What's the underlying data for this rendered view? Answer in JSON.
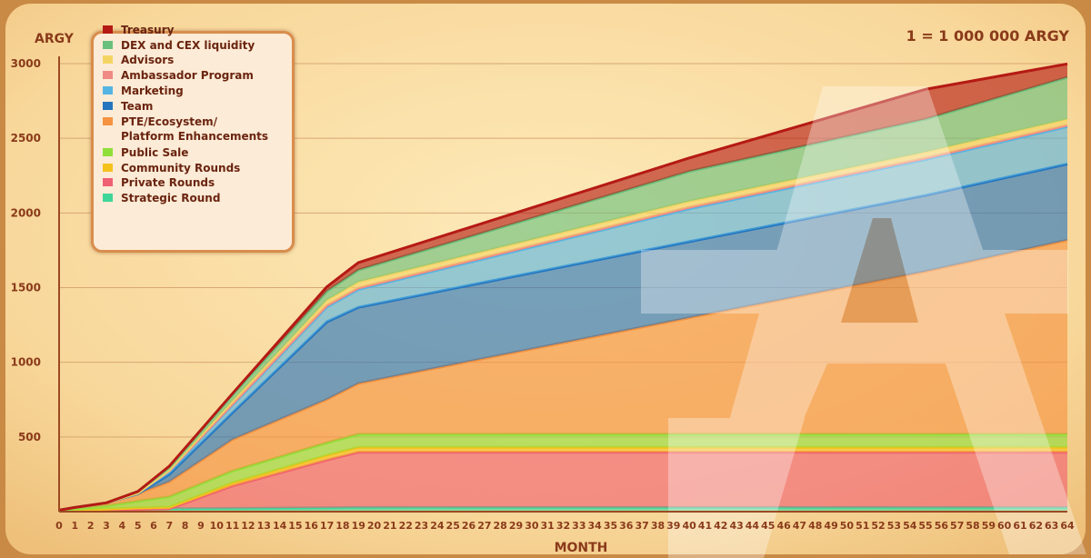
{
  "chart_data": {
    "type": "area",
    "title": "",
    "xlabel": "MONTH",
    "ylabel": "ARGY",
    "unit_note": "1 = 1 000 000 ARGY",
    "xlim": [
      0,
      64
    ],
    "ylim": [
      0,
      3000
    ],
    "yticks": [
      500,
      1000,
      1500,
      2000,
      2500,
      3000
    ],
    "xticks": [
      0,
      1,
      2,
      3,
      4,
      5,
      6,
      7,
      8,
      9,
      10,
      11,
      12,
      13,
      14,
      15,
      16,
      17,
      18,
      19,
      20,
      21,
      22,
      23,
      24,
      25,
      26,
      27,
      28,
      29,
      30,
      31,
      32,
      33,
      34,
      35,
      36,
      37,
      38,
      39,
      40,
      41,
      42,
      43,
      44,
      45,
      46,
      47,
      48,
      49,
      50,
      51,
      52,
      53,
      54,
      55,
      56,
      57,
      58,
      59,
      60,
      61,
      62,
      63,
      64
    ],
    "grid": true,
    "legend_position": "top-left",
    "stacked": true,
    "x": [
      0,
      1,
      3,
      5,
      7,
      11,
      17,
      19,
      40,
      55,
      64
    ],
    "series": [
      {
        "name": "Strategic Round",
        "color": "#3fd69a",
        "values": [
          5,
          8,
          12,
          15,
          20,
          22,
          26,
          28,
          28,
          28,
          28
        ]
      },
      {
        "name": "Private Rounds",
        "color": "#f06072",
        "values": [
          0,
          0,
          0,
          0,
          0,
          150,
          320,
          370,
          370,
          370,
          370
        ]
      },
      {
        "name": "Community Rounds",
        "color": "#f5c21c",
        "values": [
          0,
          0,
          5,
          10,
          10,
          20,
          30,
          32,
          32,
          32,
          32
        ]
      },
      {
        "name": "Public Sale",
        "color": "#8fdf3a",
        "values": [
          5,
          10,
          22,
          45,
          70,
          80,
          85,
          88,
          88,
          88,
          88
        ]
      },
      {
        "name": "PTE/Ecosystem/ Platform Enhancements",
        "color": "#f59340",
        "values": [
          0,
          10,
          20,
          50,
          100,
          210,
          290,
          340,
          780,
          1090,
          1300
        ]
      },
      {
        "name": "Team",
        "color": "#2474be",
        "values": [
          0,
          0,
          0,
          0,
          50,
          180,
          520,
          510,
          510,
          510,
          510
        ]
      },
      {
        "name": "Marketing",
        "color": "#55b4e3",
        "values": [
          0,
          0,
          0,
          5,
          20,
          50,
          100,
          120,
          220,
          240,
          250
        ]
      },
      {
        "name": "Ambassador Program",
        "color": "#ef8b84",
        "values": [
          0,
          0,
          0,
          0,
          5,
          8,
          10,
          10,
          10,
          10,
          10
        ]
      },
      {
        "name": "Advisors",
        "color": "#f4d564",
        "values": [
          0,
          0,
          0,
          0,
          5,
          20,
          35,
          40,
          40,
          40,
          40
        ]
      },
      {
        "name": "DEX and CEX liquidity",
        "color": "#69c07c",
        "values": [
          0,
          0,
          0,
          10,
          20,
          40,
          60,
          80,
          200,
          220,
          280
        ]
      },
      {
        "name": "Treasury",
        "color": "#b51a14",
        "values": [
          0,
          0,
          0,
          0,
          5,
          10,
          30,
          50,
          90,
          200,
          90
        ]
      }
    ]
  }
}
